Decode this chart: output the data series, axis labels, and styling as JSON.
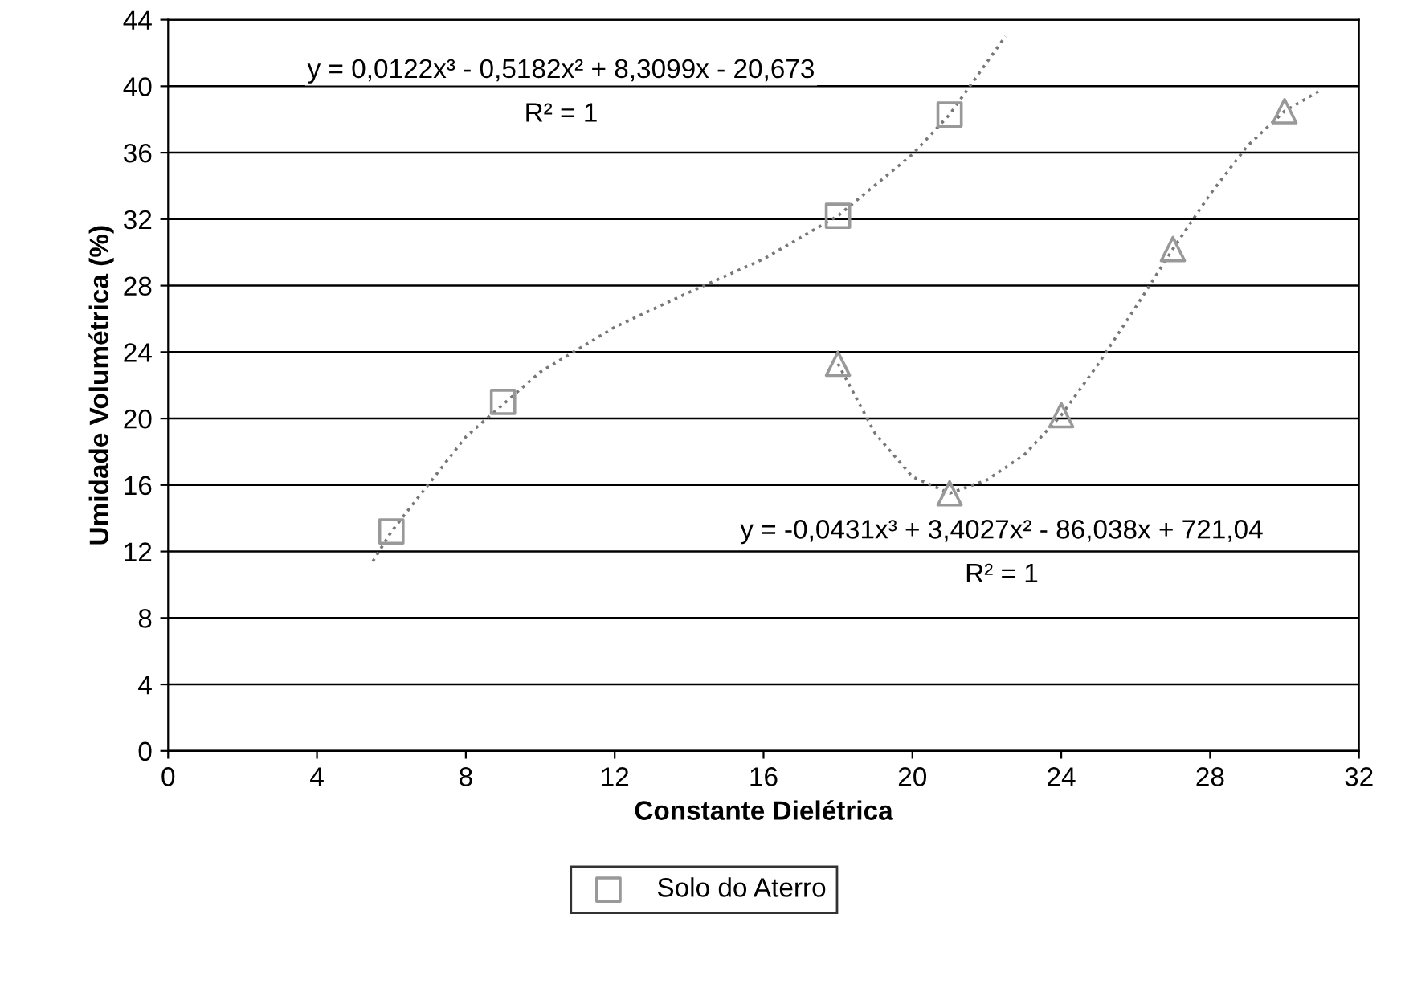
{
  "chart_data": {
    "type": "scatter",
    "xlabel": "Constante Dielétrica",
    "ylabel": "Umidade Volumétrica (%)",
    "xlim": [
      0,
      32
    ],
    "xticks": [
      0,
      4,
      8,
      12,
      16,
      20,
      24,
      28,
      32
    ],
    "ylim": [
      0,
      44
    ],
    "yticks": [
      0,
      4,
      8,
      12,
      16,
      20,
      24,
      28,
      32,
      36,
      40,
      44
    ],
    "grid": "y",
    "legend": "bottom",
    "series": [
      {
        "name": "Solo do Aterro",
        "marker": "square",
        "color": "#999999",
        "x": [
          6,
          9,
          18,
          21
        ],
        "values": [
          13.2,
          21.0,
          32.2,
          38.3
        ]
      },
      {
        "marker": "triangle",
        "color": "#999999",
        "x": [
          18,
          21,
          24,
          27,
          30
        ],
        "values": [
          23.3,
          15.5,
          20.2,
          30.2,
          38.5
        ]
      },
      {
        "type": "line",
        "marker": "none",
        "line_style": "dotted",
        "color": "#777777",
        "x": [
          5.5,
          6,
          8,
          10,
          12,
          14,
          16,
          18,
          20,
          21,
          22.5
        ],
        "values": [
          11.4,
          13.2,
          18.9,
          22.8,
          25.5,
          27.6,
          29.6,
          32.2,
          35.9,
          38.3,
          43.0
        ]
      },
      {
        "type": "line",
        "marker": "none",
        "line_style": "dotted",
        "color": "#777777",
        "x": [
          18,
          19,
          20,
          21,
          22,
          23,
          24,
          25,
          26,
          27,
          28,
          29,
          30,
          31
        ],
        "values": [
          23.3,
          19.1,
          16.5,
          15.5,
          16.3,
          17.8,
          20.2,
          23.3,
          26.7,
          30.2,
          33.5,
          36.4,
          38.5,
          39.8
        ]
      }
    ],
    "annotations": [
      "y = 0,0122x³ - 0,5182x² + 8,3099x - 20,673",
      "R² = 1",
      "y = -0,0431x³ + 3,4027x² - 86,038x + 721,04",
      "R² = 1"
    ]
  }
}
